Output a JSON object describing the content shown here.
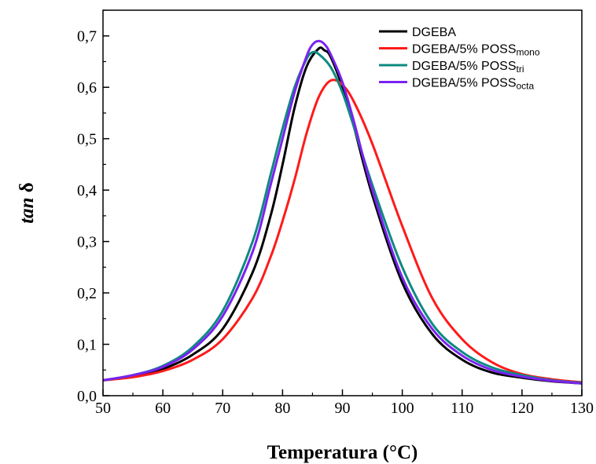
{
  "chart_data": {
    "type": "line",
    "xlabel": "Temperatura (°C)",
    "ylabel_main": "tan",
    "ylabel_symbol": "δ",
    "xlim": [
      50,
      130
    ],
    "ylim": [
      0.0,
      0.75
    ],
    "x_ticks": [
      50,
      60,
      70,
      80,
      90,
      100,
      110,
      120,
      130
    ],
    "x_tick_labels": [
      "50",
      "60",
      "70",
      "80",
      "90",
      "100",
      "110",
      "120",
      "130"
    ],
    "y_ticks": [
      0.0,
      0.1,
      0.2,
      0.3,
      0.4,
      0.5,
      0.6,
      0.7
    ],
    "y_tick_labels": [
      "0,0",
      "0,1",
      "0,2",
      "0,3",
      "0,4",
      "0,5",
      "0,6",
      "0,7"
    ],
    "grid": false,
    "legend_position": "top-right",
    "series": [
      {
        "name": "DGEBA",
        "legend_main": "DGEBA",
        "legend_sub": "",
        "color": "#000000",
        "x": [
          50,
          55,
          60,
          65,
          70,
          75,
          78,
          80,
          82,
          84,
          86,
          87,
          88,
          90,
          92,
          95,
          100,
          105,
          110,
          115,
          120,
          125,
          130
        ],
        "y": [
          0.03,
          0.038,
          0.052,
          0.08,
          0.13,
          0.24,
          0.35,
          0.45,
          0.56,
          0.64,
          0.675,
          0.672,
          0.66,
          0.6,
          0.52,
          0.39,
          0.22,
          0.12,
          0.07,
          0.045,
          0.035,
          0.028,
          0.024
        ]
      },
      {
        "name": "DGEBA/5% POSSmono",
        "legend_main": "DGEBA/5% POSS",
        "legend_sub": "mono",
        "color": "#ff1a1a",
        "x": [
          50,
          55,
          60,
          65,
          70,
          75,
          78,
          80,
          82,
          84,
          86,
          88,
          90,
          92,
          95,
          100,
          105,
          110,
          115,
          120,
          125,
          130
        ],
        "y": [
          0.03,
          0.036,
          0.048,
          0.07,
          0.11,
          0.19,
          0.27,
          0.34,
          0.42,
          0.51,
          0.58,
          0.613,
          0.605,
          0.57,
          0.49,
          0.33,
          0.19,
          0.11,
          0.065,
          0.042,
          0.032,
          0.026
        ]
      },
      {
        "name": "DGEBA/5% POSStri",
        "legend_main": "DGEBA/5% POSS",
        "legend_sub": "tri",
        "color": "#0e8a80",
        "x": [
          50,
          55,
          60,
          65,
          70,
          75,
          78,
          80,
          82,
          84,
          85,
          86,
          88,
          90,
          92,
          95,
          100,
          105,
          110,
          115,
          120,
          125,
          130
        ],
        "y": [
          0.03,
          0.04,
          0.058,
          0.095,
          0.165,
          0.3,
          0.43,
          0.52,
          0.6,
          0.655,
          0.668,
          0.665,
          0.64,
          0.59,
          0.52,
          0.41,
          0.25,
          0.14,
          0.085,
          0.055,
          0.04,
          0.03,
          0.025
        ]
      },
      {
        "name": "DGEBA/5% POSSocta",
        "legend_main": "DGEBA/5% POSS",
        "legend_sub": "octa",
        "color": "#7a22f0",
        "x": [
          50,
          55,
          60,
          65,
          70,
          75,
          78,
          80,
          82,
          84,
          85,
          86,
          87,
          88,
          90,
          92,
          95,
          100,
          105,
          110,
          115,
          120,
          125,
          130
        ],
        "y": [
          0.03,
          0.04,
          0.056,
          0.09,
          0.155,
          0.28,
          0.41,
          0.5,
          0.59,
          0.66,
          0.683,
          0.69,
          0.684,
          0.665,
          0.61,
          0.53,
          0.4,
          0.23,
          0.13,
          0.078,
          0.05,
          0.037,
          0.029,
          0.024
        ]
      }
    ]
  }
}
